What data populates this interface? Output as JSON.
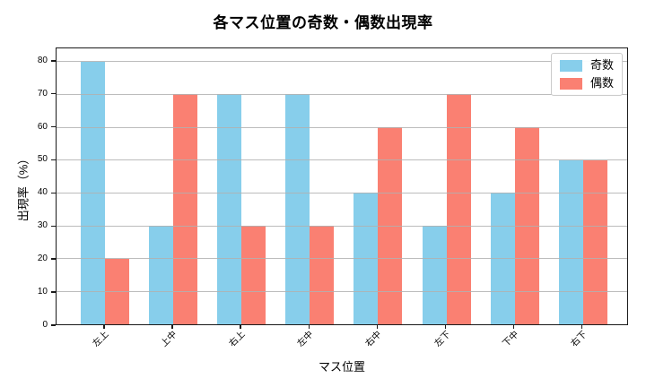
{
  "chart_data": {
    "type": "bar",
    "title": "各マス位置の奇数・偶数出現率",
    "xlabel": "マス位置",
    "ylabel": "出現率（%）",
    "categories": [
      "左上",
      "上中",
      "右上",
      "左中",
      "右中",
      "左下",
      "下中",
      "右下"
    ],
    "series": [
      {
        "name": "奇数",
        "color": "#87CEEB",
        "values": [
          80,
          30,
          70,
          70,
          40,
          30,
          40,
          50
        ]
      },
      {
        "name": "偶数",
        "color": "#FA8072",
        "values": [
          20,
          70,
          30,
          30,
          60,
          70,
          60,
          50
        ]
      }
    ],
    "ylim": [
      0,
      84
    ],
    "yticks": [
      0,
      10,
      20,
      30,
      40,
      50,
      60,
      70,
      80
    ],
    "grid": "horizontal",
    "legend_position": "upper-right"
  },
  "colors": {
    "odd_series": "#87CEEB",
    "even_series": "#FA8072",
    "gridline": "#b0b0b0",
    "axis": "#1a1a1a",
    "background": "#ffffff"
  }
}
